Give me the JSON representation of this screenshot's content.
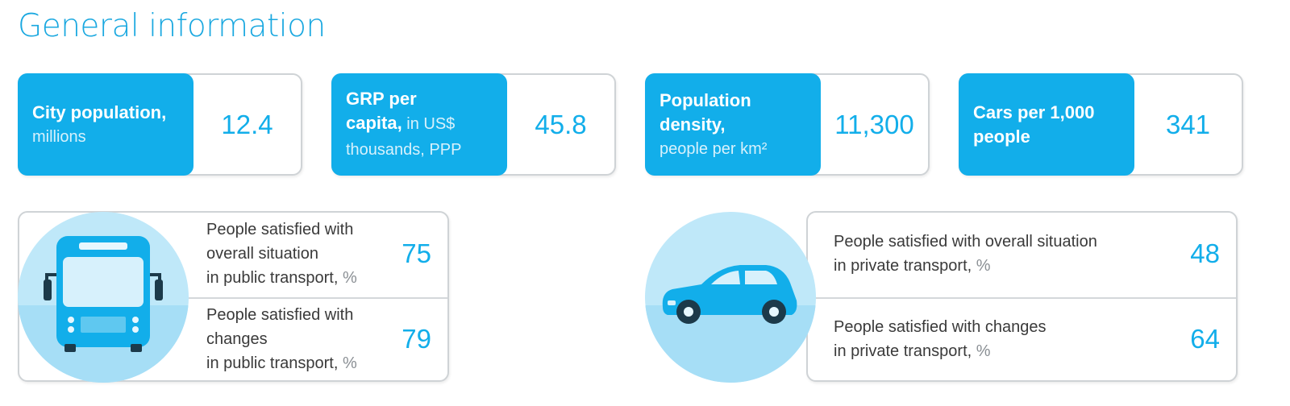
{
  "page_title": "General information",
  "stats": [
    {
      "label_strong": "City population,",
      "label_light": "millions",
      "value": "12.4"
    },
    {
      "label_strong": "GRP per",
      "label_strong2": "capita,",
      "label_light_inline": " in US$",
      "label_light": "thousands, PPP",
      "value": "45.8"
    },
    {
      "label_strong": "Population",
      "label_strong2": "density,",
      "label_light": "people per km²",
      "value": "11,300"
    },
    {
      "label_strong": "Cars per 1,000",
      "label_strong2": "people",
      "value": "341"
    }
  ],
  "public_transport": {
    "icon": "bus-icon",
    "rows": [
      {
        "line1": "People satisfied with overall situation",
        "line2": "in public transport,",
        "unit": "%",
        "value": "75"
      },
      {
        "line1": "People satisfied with changes",
        "line2": "in public transport,",
        "unit": "%",
        "value": "79"
      }
    ]
  },
  "private_transport": {
    "icon": "car-icon",
    "rows": [
      {
        "line1": "People satisfied with overall situation",
        "line2": "in private transport,",
        "unit": "%",
        "value": "48"
      },
      {
        "line1": "People satisfied with changes",
        "line2": "in private transport,",
        "unit": "%",
        "value": "64"
      }
    ]
  },
  "colors": {
    "accent": "#12aeea",
    "title": "#1aa8e0",
    "border": "#cfd3d6",
    "circle": "#b8e6f8",
    "circle_ground": "#9fdcf5"
  }
}
